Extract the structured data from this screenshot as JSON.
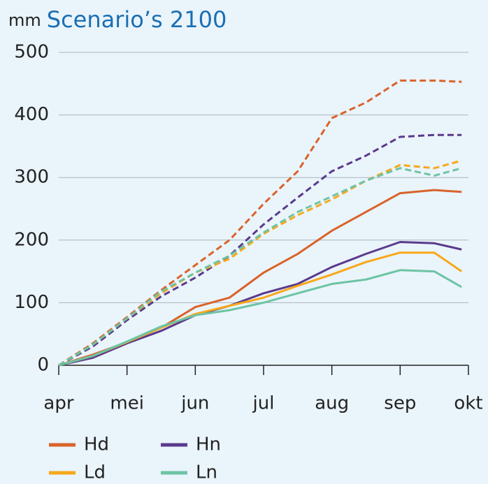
{
  "chart_data": {
    "type": "line",
    "title_unit": "mm",
    "title": "Scenario’s 2100",
    "x": [
      0,
      0.5,
      1,
      1.5,
      2,
      2.5,
      3,
      3.5,
      4,
      4.5,
      5,
      5.5,
      5.9
    ],
    "xlim": [
      0,
      6
    ],
    "xticks": [
      {
        "value": 0,
        "label": "apr"
      },
      {
        "value": 1,
        "label": "mei"
      },
      {
        "value": 2,
        "label": "jun"
      },
      {
        "value": 3,
        "label": "jul"
      },
      {
        "value": 4,
        "label": "aug"
      },
      {
        "value": 5,
        "label": "sep"
      },
      {
        "value": 6,
        "label": "okt"
      }
    ],
    "ylim": [
      0,
      500
    ],
    "yticks": [
      0,
      100,
      200,
      300,
      400,
      500
    ],
    "grid": true,
    "series": [
      {
        "name": "Hd",
        "color": "#d9632a",
        "dashed": false,
        "values": [
          0,
          17,
          37,
          60,
          93,
          108,
          148,
          178,
          215,
          245,
          275,
          280,
          277
        ]
      },
      {
        "name": "Hn",
        "color": "#5b3a8c",
        "dashed": false,
        "values": [
          0,
          12,
          35,
          55,
          80,
          95,
          115,
          130,
          157,
          178,
          197,
          195,
          185
        ]
      },
      {
        "name": "Ld",
        "color": "#f7a81b",
        "dashed": false,
        "values": [
          0,
          15,
          37,
          60,
          82,
          95,
          108,
          127,
          145,
          165,
          180,
          180,
          150
        ]
      },
      {
        "name": "Ln",
        "color": "#6cc4a4",
        "dashed": false,
        "values": [
          0,
          15,
          38,
          62,
          80,
          88,
          100,
          115,
          130,
          137,
          152,
          150,
          125
        ]
      },
      {
        "color": "#d9632a",
        "dashed": true,
        "values": [
          0,
          35,
          77,
          120,
          160,
          200,
          258,
          310,
          395,
          420,
          455,
          455,
          453
        ]
      },
      {
        "color": "#5b3a8c",
        "dashed": true,
        "values": [
          0,
          30,
          72,
          110,
          140,
          175,
          225,
          268,
          310,
          335,
          365,
          368,
          368
        ]
      },
      {
        "color": "#f7a81b",
        "dashed": true,
        "values": [
          0,
          33,
          75,
          115,
          148,
          170,
          210,
          240,
          265,
          295,
          320,
          315,
          327
        ]
      },
      {
        "color": "#6cc4a4",
        "dashed": true,
        "values": [
          0,
          33,
          75,
          118,
          148,
          175,
          212,
          245,
          270,
          295,
          315,
          303,
          315
        ]
      }
    ]
  }
}
